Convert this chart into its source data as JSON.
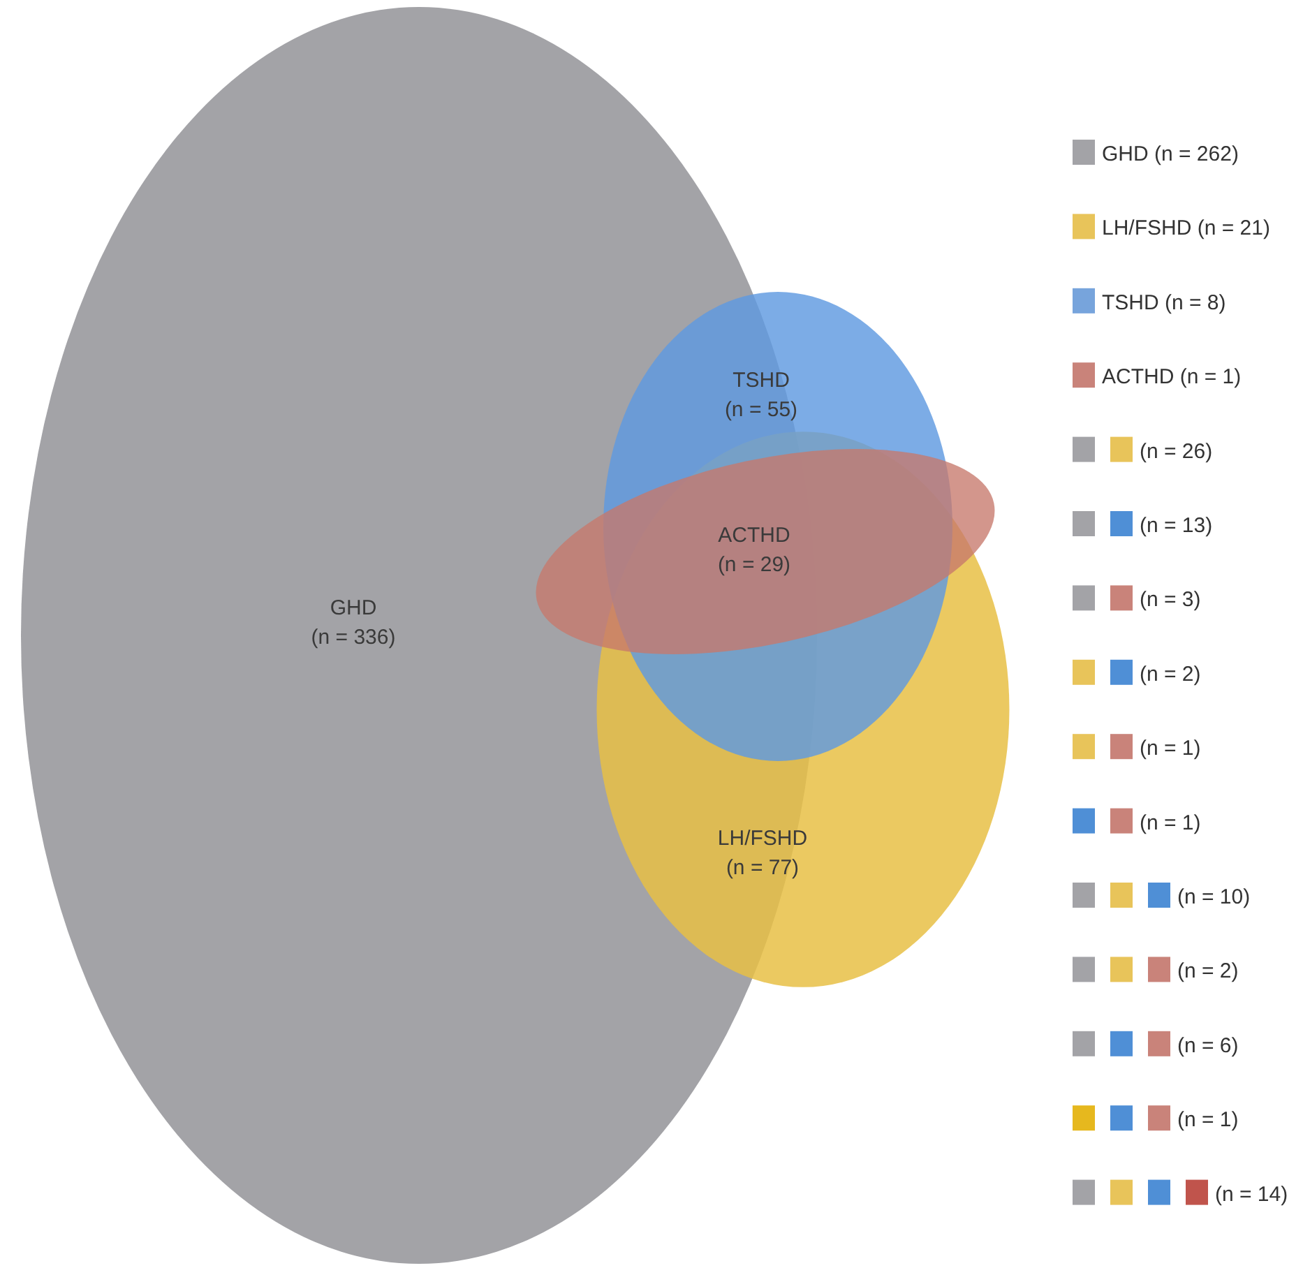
{
  "chart_data": [
    {
      "type": "other",
      "categories": [
        "GHD",
        "LH/FSHD",
        "TSHD",
        "ACTHD"
      ],
      "values": [
        336,
        77,
        55,
        29
      ],
      "value_labels": [
        "(n = 336)",
        "(n = 77)",
        "(n = 55)",
        "(n = 29)"
      ],
      "colors": [
        "#a3a3a7",
        "#e8bf45",
        "#5f9ae0",
        "#c7786c"
      ]
    },
    {
      "type": "other",
      "legend": "right",
      "series": [
        {
          "name": "GHD (n = 262)",
          "color": "#a3a3a7"
        },
        {
          "name": "LH/FSHD (n = 21)",
          "color": "#e8c45a"
        },
        {
          "name": "TSHD (n = 8)",
          "color": "#77a4dc"
        },
        {
          "name": "ACTHD (n = 1)",
          "color": "#c9837a"
        },
        {
          "color": "#a3a3a7"
        },
        {
          "name": "(n = 26)",
          "color": "#e8c45a"
        },
        {
          "color": "#a3a3a7"
        },
        {
          "name": "(n = 13)",
          "color": "#4f8fd6"
        },
        {
          "color": "#a3a3a7"
        },
        {
          "name": "(n = 3)",
          "color": "#c9837a"
        },
        {
          "color": "#e8c45a"
        },
        {
          "name": "(n = 2)",
          "color": "#4f8fd6"
        },
        {
          "color": "#e8c45a"
        },
        {
          "name": "(n = 1)",
          "color": "#c9837a"
        },
        {
          "color": "#4f8fd6"
        },
        {
          "name": "(n = 1)",
          "color": "#c9837a"
        },
        {
          "color": "#a3a3a7"
        },
        {
          "color": "#e8c45a"
        },
        {
          "name": "(n = 10)",
          "color": "#4f8fd6"
        },
        {
          "color": "#a3a3a7"
        },
        {
          "color": "#e8c45a"
        },
        {
          "name": "(n = 2)",
          "color": "#c9837a"
        },
        {
          "color": "#a3a3a7"
        },
        {
          "color": "#4f8fd6"
        },
        {
          "name": "(n = 6)",
          "color": "#c9837a"
        },
        {
          "color": "#e6b81e"
        },
        {
          "color": "#4f8fd6"
        },
        {
          "name": "(n = 1)",
          "color": "#c9837a"
        },
        {
          "color": "#a3a3a7"
        },
        {
          "color": "#e8c45a"
        },
        {
          "color": "#4f8fd6"
        },
        {
          "name": "(n = 14)",
          "color": "#c0544c"
        }
      ]
    }
  ]
}
